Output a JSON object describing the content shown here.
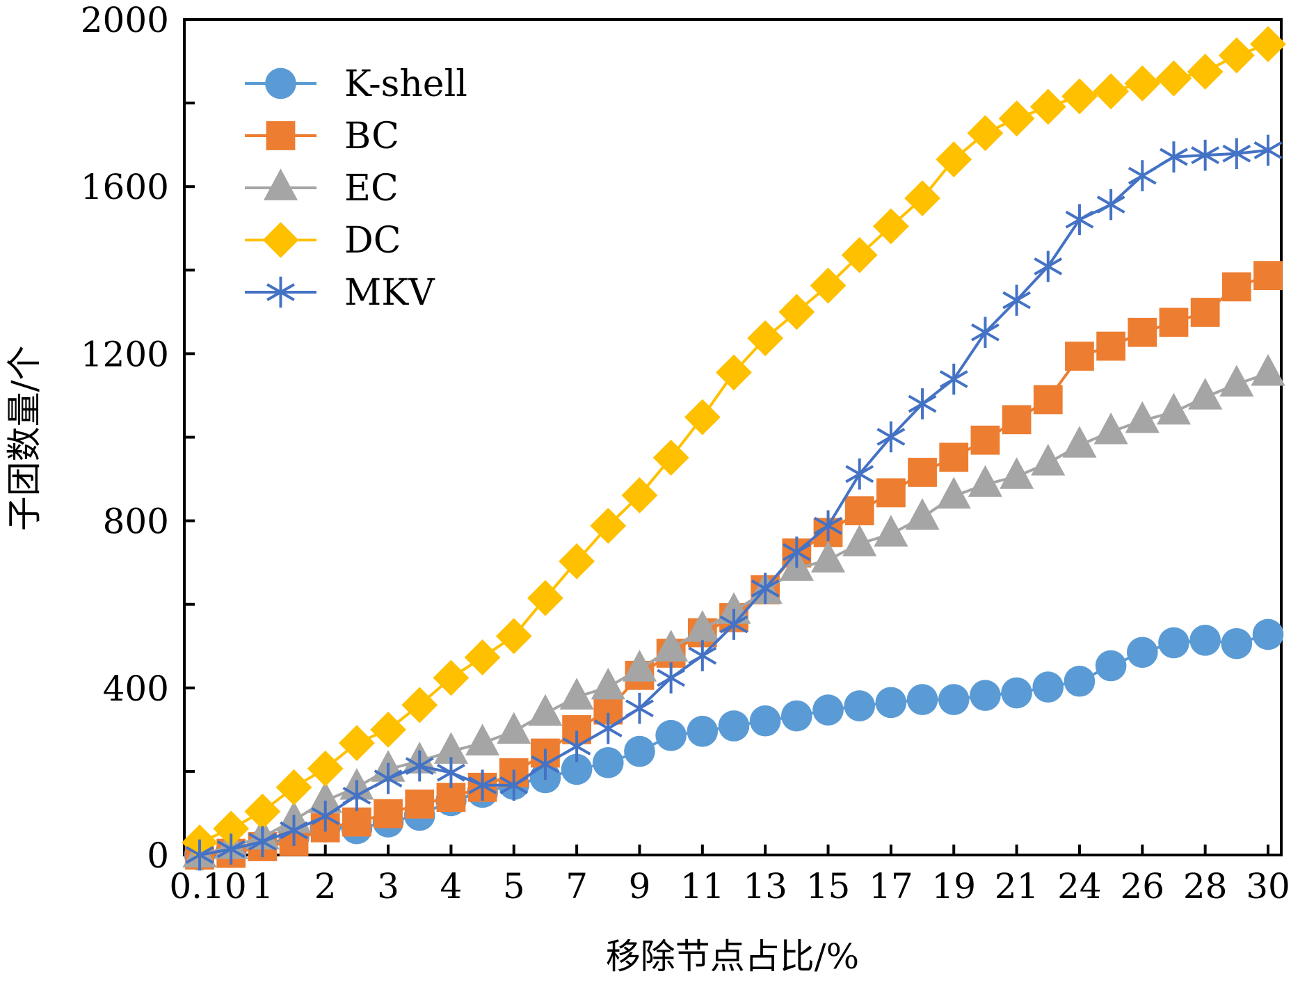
{
  "chart_data": {
    "type": "line",
    "title": "",
    "xlabel": "移除节点占比/%",
    "ylabel": "子团数量/个",
    "ylim": [
      0,
      2000
    ],
    "grid": false,
    "legend_position": "top-left",
    "yticks": [
      "0",
      "400",
      "800",
      "1200",
      "1600",
      "2000"
    ],
    "ytick_values": [
      0,
      400,
      800,
      1200,
      1600,
      2000
    ],
    "yminor_tick_values": [
      200,
      600,
      1000,
      1400,
      1800
    ],
    "x": [
      0.1,
      0.5,
      1,
      1.5,
      2,
      2.5,
      3,
      3.5,
      4,
      4.5,
      5,
      6,
      7,
      8,
      9,
      10,
      11,
      12,
      13,
      14,
      15,
      16,
      17,
      18,
      19,
      20,
      21,
      22,
      24,
      25,
      26,
      27,
      28,
      29,
      30
    ],
    "xtick_labels": [
      {
        "index": 0,
        "label": "0.10"
      },
      {
        "index": 2,
        "label": "1"
      },
      {
        "index": 4,
        "label": "2"
      },
      {
        "index": 6,
        "label": "3"
      },
      {
        "index": 8,
        "label": "4"
      },
      {
        "index": 10,
        "label": "5"
      },
      {
        "index": 12,
        "label": "7"
      },
      {
        "index": 14,
        "label": "9"
      },
      {
        "index": 16,
        "label": "11"
      },
      {
        "index": 18,
        "label": "13"
      },
      {
        "index": 20,
        "label": "15"
      },
      {
        "index": 22,
        "label": "17"
      },
      {
        "index": 24,
        "label": "19"
      },
      {
        "index": 26,
        "label": "21"
      },
      {
        "index": 28,
        "label": "24"
      },
      {
        "index": 30,
        "label": "26"
      },
      {
        "index": 32,
        "label": "28"
      },
      {
        "index": 34,
        "label": "30"
      }
    ],
    "series": [
      {
        "name": "K-shell",
        "color": "#5b9bd5",
        "marker": "circle",
        "values": [
          0,
          8,
          24,
          43,
          67,
          63,
          79,
          95,
          130,
          150,
          169,
          185,
          205,
          221,
          248,
          286,
          296,
          309,
          321,
          333,
          347,
          357,
          365,
          372,
          372,
          382,
          388,
          402,
          416,
          453,
          485,
          508,
          514,
          506,
          528
        ]
      },
      {
        "name": "BC",
        "color": "#ed7d31",
        "marker": "square",
        "values": [
          0,
          4,
          20,
          32,
          65,
          79,
          99,
          122,
          138,
          162,
          197,
          244,
          300,
          347,
          430,
          483,
          532,
          568,
          635,
          723,
          772,
          824,
          867,
          916,
          952,
          993,
          1042,
          1090,
          1194,
          1218,
          1251,
          1275,
          1299,
          1360,
          1387
        ]
      },
      {
        "name": "EC",
        "color": "#a5a5a5",
        "marker": "triangle",
        "values": [
          0,
          20,
          43,
          83,
          130,
          162,
          205,
          225,
          248,
          268,
          296,
          339,
          378,
          402,
          445,
          493,
          540,
          583,
          631,
          686,
          706,
          745,
          768,
          808,
          859,
          887,
          906,
          938,
          981,
          1013,
          1040,
          1060,
          1096,
          1127,
          1153
        ]
      },
      {
        "name": "DC",
        "color": "#ffc000",
        "marker": "diamond",
        "values": [
          30,
          63,
          104,
          162,
          207,
          268,
          300,
          359,
          424,
          473,
          524,
          615,
          703,
          788,
          861,
          951,
          1048,
          1155,
          1237,
          1300,
          1363,
          1436,
          1505,
          1572,
          1665,
          1728,
          1763,
          1791,
          1816,
          1828,
          1847,
          1859,
          1875,
          1914,
          1941
        ]
      },
      {
        "name": "MKV",
        "color": "#4472c4",
        "marker": "asterisk",
        "values": [
          0,
          14,
          32,
          59,
          93,
          142,
          183,
          213,
          197,
          167,
          167,
          217,
          260,
          303,
          351,
          424,
          477,
          552,
          638,
          725,
          788,
          912,
          1001,
          1080,
          1139,
          1251,
          1328,
          1409,
          1521,
          1557,
          1626,
          1671,
          1675,
          1679,
          1687
        ]
      }
    ]
  }
}
